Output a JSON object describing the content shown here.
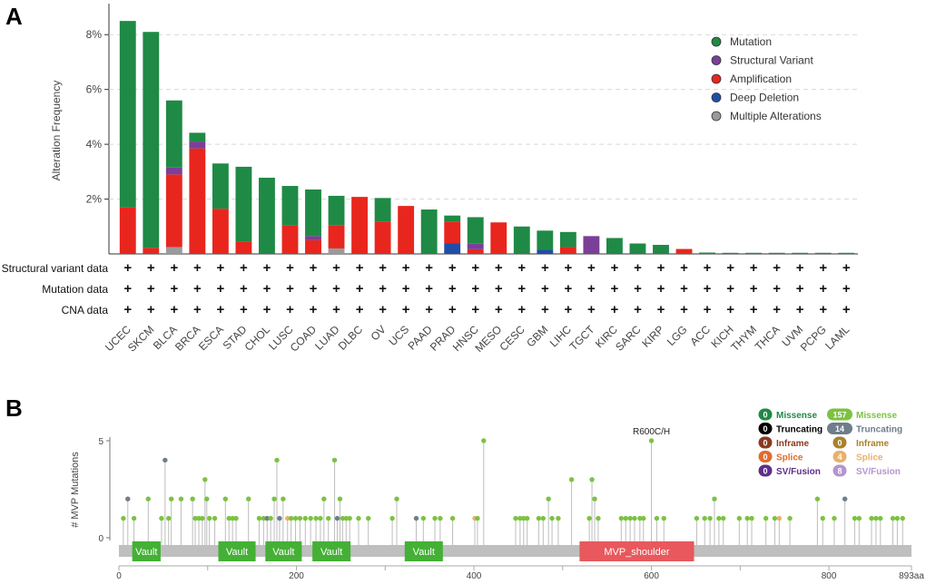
{
  "panels": {
    "a_label": "A",
    "b_label": "B"
  },
  "colors": {
    "mutation": "#1f8a45",
    "structural_variant": "#7b3f98",
    "amplification": "#e8261e",
    "deep_deletion": "#1f4ea8",
    "multiple": "#9a9a9a",
    "grid": "#d9d9d9",
    "protein_bar": "#bfbfbf",
    "vault_domain": "#44b035",
    "mvp_shoulder_domain": "#e8585c",
    "missense_driver": "#1f8a45",
    "missense_vus": "#7cc242",
    "truncating_driver": "#000000",
    "truncating_vus": "#6f7d8c",
    "inframe_driver": "#8b3a1e",
    "inframe_vus": "#a9822b",
    "splice_driver": "#e06c2c",
    "splice_vus": "#e8b16a",
    "svfusion_driver": "#5c2f8a",
    "svfusion_vus": "#b495d0"
  },
  "chart_data": [
    {
      "type": "bar",
      "stacked": true,
      "ylabel": "Alteration Frequency",
      "ylim": [
        0,
        9
      ],
      "yticks": [
        "2%",
        "4%",
        "6%",
        "8%"
      ],
      "ytick_values": [
        2,
        4,
        6,
        8
      ],
      "grid": true,
      "legend_position": "top-right",
      "categories": [
        "UCEC",
        "SKCM",
        "BLCA",
        "BRCA",
        "ESCA",
        "STAD",
        "CHOL",
        "LUSC",
        "COAD",
        "LUAD",
        "DLBC",
        "OV",
        "UCS",
        "PAAD",
        "PRAD",
        "HNSC",
        "MESO",
        "CESC",
        "GBM",
        "LIHC",
        "TGCT",
        "KIRC",
        "SARC",
        "KIRP",
        "LGG",
        "ACC",
        "KICH",
        "THYM",
        "THCA",
        "UVM",
        "PCPG",
        "LAML"
      ],
      "series": [
        {
          "name": "Multiple Alterations",
          "key": "multiple",
          "values": [
            0,
            0,
            0.25,
            0,
            0,
            0,
            0,
            0,
            0,
            0.2,
            0,
            0,
            0,
            0,
            0,
            0,
            0,
            0,
            0,
            0,
            0,
            0,
            0,
            0,
            0,
            0,
            0,
            0,
            0,
            0,
            0,
            0
          ]
        },
        {
          "name": "Deep Deletion",
          "key": "deep_deletion",
          "values": [
            0,
            0,
            0,
            0,
            0,
            0,
            0,
            0,
            0,
            0,
            0,
            0,
            0,
            0,
            0.38,
            0,
            0,
            0,
            0.15,
            0,
            0,
            0,
            0,
            0,
            0,
            0,
            0,
            0,
            0,
            0,
            0,
            0
          ]
        },
        {
          "name": "Amplification",
          "key": "amplification",
          "values": [
            1.7,
            0.22,
            2.65,
            3.85,
            1.65,
            0.45,
            0,
            1.03,
            0.5,
            0.85,
            2.08,
            1.18,
            1.75,
            0,
            0.8,
            0.17,
            1.15,
            0,
            0,
            0.25,
            0,
            0,
            0,
            0,
            0.18,
            0,
            0,
            0,
            0,
            0,
            0,
            0
          ]
        },
        {
          "name": "Structural Variant",
          "key": "structural_variant",
          "values": [
            0,
            0,
            0.25,
            0.25,
            0,
            0,
            0,
            0,
            0.15,
            0,
            0,
            0,
            0,
            0,
            0,
            0.2,
            0,
            0,
            0,
            0,
            0.65,
            0,
            0,
            0,
            0,
            0,
            0,
            0,
            0,
            0,
            0,
            0
          ]
        },
        {
          "name": "Mutation",
          "key": "mutation",
          "values": [
            6.8,
            7.88,
            2.45,
            0.32,
            1.65,
            2.73,
            2.78,
            1.45,
            1.7,
            1.07,
            0,
            0.86,
            0,
            1.62,
            0.22,
            0.97,
            0,
            1.0,
            0.7,
            0.55,
            0,
            0.58,
            0.38,
            0.33,
            0,
            0.05,
            0.04,
            0.04,
            0.04,
            0.04,
            0.04,
            0.04
          ]
        }
      ],
      "legend_entries": [
        {
          "label": "Mutation",
          "key": "mutation"
        },
        {
          "label": "Structural Variant",
          "key": "structural_variant"
        },
        {
          "label": "Amplification",
          "key": "amplification"
        },
        {
          "label": "Deep Deletion",
          "key": "deep_deletion"
        },
        {
          "label": "Multiple Alterations",
          "key": "multiple"
        }
      ],
      "annotation_rows": [
        {
          "label": "Structural variant data",
          "symbol": "+"
        },
        {
          "label": "Mutation data",
          "symbol": "+"
        },
        {
          "label": "CNA data",
          "symbol": "+"
        }
      ]
    },
    {
      "type": "scatter",
      "subtype": "lollipop",
      "ylabel": "# MVP Mutations",
      "ylim": [
        0,
        5
      ],
      "yticks": [
        "0",
        "5"
      ],
      "xlim": [
        0,
        893
      ],
      "xticks": [
        "0",
        "200",
        "400",
        "600",
        "800"
      ],
      "xtick_values": [
        0,
        200,
        400,
        600,
        800
      ],
      "x_end_label": "893aa",
      "highlight_label": "R600C/H",
      "highlight_x": 600,
      "domains": [
        {
          "name": "Vault",
          "start": 15,
          "end": 47
        },
        {
          "name": "Vault",
          "start": 112,
          "end": 154
        },
        {
          "name": "Vault",
          "start": 165,
          "end": 206
        },
        {
          "name": "Vault",
          "start": 218,
          "end": 261
        },
        {
          "name": "Vault",
          "start": 322,
          "end": 365
        },
        {
          "name": "MVP_shoulder",
          "start": 519,
          "end": 648
        }
      ],
      "mutations": [
        {
          "x": 5,
          "count": 1,
          "type": "missense_vus"
        },
        {
          "x": 10,
          "count": 2,
          "type": "truncating_vus"
        },
        {
          "x": 17,
          "count": 1,
          "type": "missense_vus"
        },
        {
          "x": 33,
          "count": 2,
          "type": "missense_vus"
        },
        {
          "x": 48,
          "count": 1,
          "type": "missense_vus"
        },
        {
          "x": 52,
          "count": 4,
          "type": "truncating_vus"
        },
        {
          "x": 56,
          "count": 1,
          "type": "missense_vus"
        },
        {
          "x": 59,
          "count": 2,
          "type": "missense_vus"
        },
        {
          "x": 70,
          "count": 2,
          "type": "missense_vus"
        },
        {
          "x": 83,
          "count": 2,
          "type": "missense_vus"
        },
        {
          "x": 86,
          "count": 1,
          "type": "missense_vus"
        },
        {
          "x": 90,
          "count": 1,
          "type": "missense_vus"
        },
        {
          "x": 94,
          "count": 1,
          "type": "missense_vus"
        },
        {
          "x": 97,
          "count": 3,
          "type": "missense_vus"
        },
        {
          "x": 99,
          "count": 2,
          "type": "missense_vus"
        },
        {
          "x": 102,
          "count": 1,
          "type": "missense_vus"
        },
        {
          "x": 108,
          "count": 1,
          "type": "missense_vus"
        },
        {
          "x": 120,
          "count": 2,
          "type": "missense_vus"
        },
        {
          "x": 124,
          "count": 1,
          "type": "missense_vus"
        },
        {
          "x": 128,
          "count": 1,
          "type": "missense_vus"
        },
        {
          "x": 132,
          "count": 1,
          "type": "missense_vus"
        },
        {
          "x": 146,
          "count": 2,
          "type": "missense_vus"
        },
        {
          "x": 158,
          "count": 1,
          "type": "missense_vus"
        },
        {
          "x": 163,
          "count": 1,
          "type": "missense_vus"
        },
        {
          "x": 167,
          "count": 1,
          "type": "truncating_vus"
        },
        {
          "x": 171,
          "count": 1,
          "type": "missense_vus"
        },
        {
          "x": 175,
          "count": 2,
          "type": "missense_vus"
        },
        {
          "x": 178,
          "count": 4,
          "type": "missense_vus"
        },
        {
          "x": 181,
          "count": 1,
          "type": "truncating_vus"
        },
        {
          "x": 185,
          "count": 2,
          "type": "missense_vus"
        },
        {
          "x": 190,
          "count": 1,
          "type": "splice_vus"
        },
        {
          "x": 194,
          "count": 1,
          "type": "missense_vus"
        },
        {
          "x": 199,
          "count": 1,
          "type": "missense_vus"
        },
        {
          "x": 204,
          "count": 1,
          "type": "missense_vus"
        },
        {
          "x": 210,
          "count": 1,
          "type": "missense_vus"
        },
        {
          "x": 216,
          "count": 1,
          "type": "missense_vus"
        },
        {
          "x": 222,
          "count": 1,
          "type": "missense_vus"
        },
        {
          "x": 227,
          "count": 1,
          "type": "missense_vus"
        },
        {
          "x": 231,
          "count": 2,
          "type": "missense_vus"
        },
        {
          "x": 236,
          "count": 1,
          "type": "missense_vus"
        },
        {
          "x": 243,
          "count": 4,
          "type": "missense_vus"
        },
        {
          "x": 246,
          "count": 1,
          "type": "truncating_vus"
        },
        {
          "x": 249,
          "count": 2,
          "type": "missense_vus"
        },
        {
          "x": 252,
          "count": 1,
          "type": "missense_vus"
        },
        {
          "x": 256,
          "count": 1,
          "type": "missense_vus"
        },
        {
          "x": 260,
          "count": 1,
          "type": "missense_vus"
        },
        {
          "x": 270,
          "count": 1,
          "type": "missense_vus"
        },
        {
          "x": 281,
          "count": 1,
          "type": "missense_vus"
        },
        {
          "x": 308,
          "count": 1,
          "type": "missense_vus"
        },
        {
          "x": 313,
          "count": 2,
          "type": "missense_vus"
        },
        {
          "x": 335,
          "count": 1,
          "type": "truncating_vus"
        },
        {
          "x": 343,
          "count": 1,
          "type": "missense_vus"
        },
        {
          "x": 356,
          "count": 1,
          "type": "missense_vus"
        },
        {
          "x": 362,
          "count": 1,
          "type": "missense_vus"
        },
        {
          "x": 376,
          "count": 1,
          "type": "missense_vus"
        },
        {
          "x": 401,
          "count": 1,
          "type": "splice_vus"
        },
        {
          "x": 404,
          "count": 1,
          "type": "missense_vus"
        },
        {
          "x": 411,
          "count": 5,
          "type": "missense_vus"
        },
        {
          "x": 447,
          "count": 1,
          "type": "missense_vus"
        },
        {
          "x": 452,
          "count": 1,
          "type": "missense_vus"
        },
        {
          "x": 456,
          "count": 1,
          "type": "missense_vus"
        },
        {
          "x": 460,
          "count": 1,
          "type": "missense_vus"
        },
        {
          "x": 473,
          "count": 1,
          "type": "missense_vus"
        },
        {
          "x": 478,
          "count": 1,
          "type": "missense_vus"
        },
        {
          "x": 484,
          "count": 2,
          "type": "missense_vus"
        },
        {
          "x": 488,
          "count": 1,
          "type": "missense_vus"
        },
        {
          "x": 495,
          "count": 1,
          "type": "missense_vus"
        },
        {
          "x": 510,
          "count": 3,
          "type": "missense_vus"
        },
        {
          "x": 530,
          "count": 1,
          "type": "missense_vus"
        },
        {
          "x": 533,
          "count": 3,
          "type": "missense_vus"
        },
        {
          "x": 536,
          "count": 2,
          "type": "missense_vus"
        },
        {
          "x": 540,
          "count": 1,
          "type": "missense_vus"
        },
        {
          "x": 566,
          "count": 1,
          "type": "missense_vus"
        },
        {
          "x": 571,
          "count": 1,
          "type": "missense_vus"
        },
        {
          "x": 576,
          "count": 1,
          "type": "missense_vus"
        },
        {
          "x": 581,
          "count": 1,
          "type": "missense_vus"
        },
        {
          "x": 587,
          "count": 1,
          "type": "missense_vus"
        },
        {
          "x": 591,
          "count": 1,
          "type": "missense_vus"
        },
        {
          "x": 600,
          "count": 5,
          "type": "missense_vus"
        },
        {
          "x": 606,
          "count": 1,
          "type": "missense_vus"
        },
        {
          "x": 614,
          "count": 1,
          "type": "missense_vus"
        },
        {
          "x": 651,
          "count": 1,
          "type": "missense_vus"
        },
        {
          "x": 660,
          "count": 1,
          "type": "missense_vus"
        },
        {
          "x": 666,
          "count": 1,
          "type": "missense_vus"
        },
        {
          "x": 671,
          "count": 2,
          "type": "missense_vus"
        },
        {
          "x": 676,
          "count": 1,
          "type": "missense_vus"
        },
        {
          "x": 681,
          "count": 1,
          "type": "missense_vus"
        },
        {
          "x": 699,
          "count": 1,
          "type": "missense_vus"
        },
        {
          "x": 708,
          "count": 1,
          "type": "missense_vus"
        },
        {
          "x": 713,
          "count": 1,
          "type": "missense_vus"
        },
        {
          "x": 729,
          "count": 1,
          "type": "missense_vus"
        },
        {
          "x": 739,
          "count": 1,
          "type": "missense_vus"
        },
        {
          "x": 744,
          "count": 1,
          "type": "splice_vus"
        },
        {
          "x": 756,
          "count": 1,
          "type": "missense_vus"
        },
        {
          "x": 787,
          "count": 2,
          "type": "missense_vus"
        },
        {
          "x": 793,
          "count": 1,
          "type": "missense_vus"
        },
        {
          "x": 806,
          "count": 1,
          "type": "missense_vus"
        },
        {
          "x": 818,
          "count": 2,
          "type": "truncating_vus"
        },
        {
          "x": 829,
          "count": 1,
          "type": "missense_vus"
        },
        {
          "x": 834,
          "count": 1,
          "type": "missense_vus"
        },
        {
          "x": 848,
          "count": 1,
          "type": "missense_vus"
        },
        {
          "x": 853,
          "count": 1,
          "type": "missense_vus"
        },
        {
          "x": 858,
          "count": 1,
          "type": "missense_vus"
        },
        {
          "x": 872,
          "count": 1,
          "type": "missense_vus"
        },
        {
          "x": 877,
          "count": 1,
          "type": "missense_vus"
        },
        {
          "x": 883,
          "count": 1,
          "type": "missense_vus"
        }
      ],
      "legend": {
        "driver": [
          {
            "count": "0",
            "label": "Missense",
            "key": "missense_driver"
          },
          {
            "count": "0",
            "label": "Truncating",
            "key": "truncating_driver"
          },
          {
            "count": "0",
            "label": "Inframe",
            "key": "inframe_driver"
          },
          {
            "count": "0",
            "label": "Splice",
            "key": "splice_driver"
          },
          {
            "count": "0",
            "label": "SV/Fusion",
            "key": "svfusion_driver"
          }
        ],
        "vus": [
          {
            "count": "157",
            "label": "Missense",
            "key": "missense_vus"
          },
          {
            "count": "14",
            "label": "Truncating",
            "key": "truncating_vus"
          },
          {
            "count": "0",
            "label": "Inframe",
            "key": "inframe_vus"
          },
          {
            "count": "4",
            "label": "Splice",
            "key": "splice_vus"
          },
          {
            "count": "8",
            "label": "SV/Fusion",
            "key": "svfusion_vus"
          }
        ]
      }
    }
  ]
}
